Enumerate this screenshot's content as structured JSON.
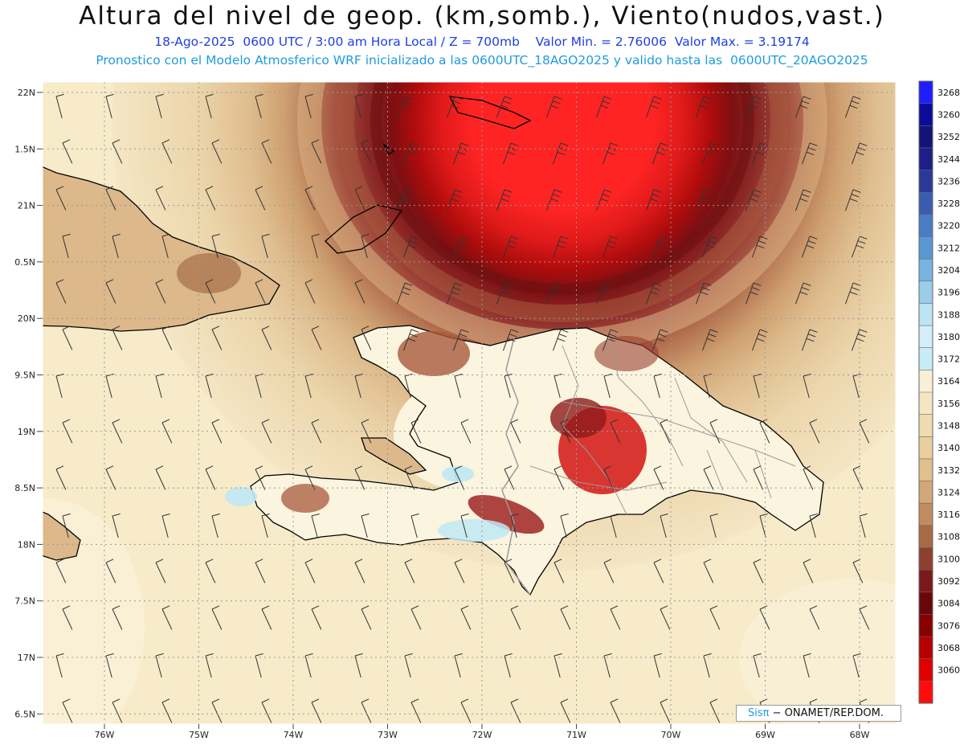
{
  "header": {
    "title": "Altura del nivel de geop. (km,somb.), Viento(nudos,vast.)",
    "subtitle": "18-Ago-2025  0600 UTC / 3:00 am Hora Local / Z = 700mb    Valor Min. = 2.76006  Valor Max. = 3.19174",
    "subtitle2": "Pronostico con el Modelo Atmosferico WRF inicializado a las 0600UTC_18AGO2025 y valido hasta las  0600UTC_20AGO2025"
  },
  "map": {
    "lat_labels": [
      "22N",
      "1.5N",
      "21N",
      "0.5N",
      "20N",
      "9.5N",
      "19N",
      "8.5N",
      "18N",
      "7.5N",
      "17N",
      "6.5N"
    ],
    "lon_labels": [
      "76W",
      "75W",
      "74W",
      "73W",
      "72W",
      "71W",
      "70W",
      "69W",
      "68W"
    ],
    "colors": {
      "background": "#f7ebc9",
      "pale": "#fbf4df",
      "tan": "#dcb88a",
      "brown": "#b37a50",
      "dark_brown": "#7a2a24",
      "maroon": "#8c1414",
      "red": "#ff2020",
      "light_blue": "#bfe8f5",
      "coast": "#000000",
      "border": "#9a9a9a"
    }
  },
  "colorbar": {
    "labels": [
      "3268",
      "3260",
      "3252",
      "3244",
      "3236",
      "3228",
      "3220",
      "3212",
      "3204",
      "3196",
      "3188",
      "3180",
      "3172",
      "3164",
      "3156",
      "3148",
      "3140",
      "3132",
      "3124",
      "3116",
      "3108",
      "3100",
      "3092",
      "3084",
      "3076",
      "3068",
      "3060"
    ],
    "colors": [
      "#1e1eff",
      "#0c0c9a",
      "#141478",
      "#1e1e88",
      "#2a3898",
      "#3a5cb0",
      "#4a7cc4",
      "#5a98d4",
      "#78b4e0",
      "#9acdea",
      "#bde4f4",
      "#d4eef8",
      "#c6ecf7",
      "#f8f0d6",
      "#f4e6c2",
      "#eedcb0",
      "#e9cf9e",
      "#e0c08c",
      "#d2a878",
      "#c08c5e",
      "#a86a46",
      "#8e4030",
      "#7a1a1a",
      "#680808",
      "#880000",
      "#b40000",
      "#e00000",
      "#ff0c0c"
    ]
  },
  "credit": {
    "brand": "Sisπ",
    "org": " − ONAMET/REP.DOM."
  }
}
